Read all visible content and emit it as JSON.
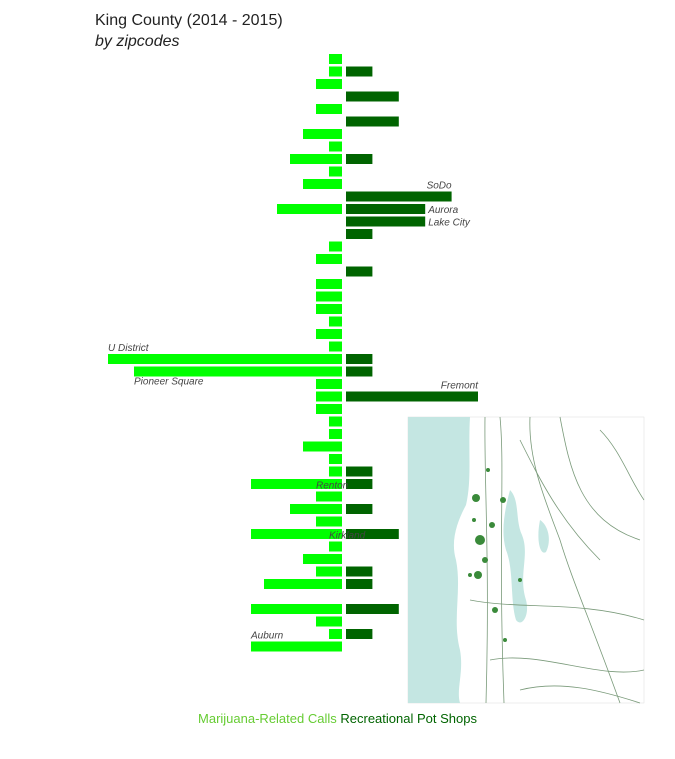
{
  "title": "King County (2014 - 2015)",
  "subtitle": "by zipcodes",
  "colors": {
    "calls": "#00ff00",
    "shops": "#006400",
    "legend_calls": "#66cc33",
    "legend_shops": "#006400",
    "label": "#444444"
  },
  "legend": {
    "calls": "Marijuana-Related Calls",
    "shops": "Recreational Pot Shops"
  },
  "map": {
    "water": "#c4e6e2",
    "roads": "#7a9a7a",
    "pins": "#3a8a3a"
  },
  "chart_data": {
    "type": "bar",
    "orientation": "horizontal-diverging",
    "series": [
      {
        "name": "Marijuana-Related Calls",
        "values": [
          1,
          1,
          2,
          0,
          2,
          0,
          3,
          1,
          4,
          1,
          3,
          0,
          5,
          0,
          0,
          1,
          2,
          0,
          2,
          2,
          2,
          1,
          2,
          1,
          18,
          16,
          2,
          2,
          2,
          1,
          1,
          3,
          1,
          1,
          7,
          2,
          4,
          2,
          7,
          1,
          3,
          2,
          6,
          0,
          7,
          2,
          1,
          7
        ]
      },
      {
        "name": "Recreational Pot Shops",
        "values": [
          0,
          2,
          0,
          4,
          0,
          4,
          0,
          0,
          2,
          0,
          0,
          8,
          6,
          6,
          2,
          0,
          0,
          2,
          0,
          0,
          0,
          0,
          0,
          0,
          2,
          2,
          0,
          10,
          0,
          0,
          0,
          0,
          0,
          2,
          2,
          0,
          2,
          0,
          4,
          0,
          0,
          2,
          2,
          0,
          4,
          0,
          2,
          0
        ]
      }
    ],
    "annotations": [
      {
        "text": "SoDo",
        "row": 11,
        "side": "right"
      },
      {
        "text": "Aurora",
        "row": 12,
        "side": "right"
      },
      {
        "text": "Lake City",
        "row": 13,
        "side": "right"
      },
      {
        "text": "U District",
        "row": 24,
        "side": "left"
      },
      {
        "text": "Fremont",
        "row": 27,
        "side": "right"
      },
      {
        "text": "Pioneer Square",
        "row": 25,
        "side": "left"
      },
      {
        "text": "Renton",
        "row": 35,
        "side": "left"
      },
      {
        "text": "Kirkland",
        "row": 39,
        "side": "left"
      },
      {
        "text": "Auburn",
        "row": 47,
        "side": "left"
      }
    ]
  }
}
